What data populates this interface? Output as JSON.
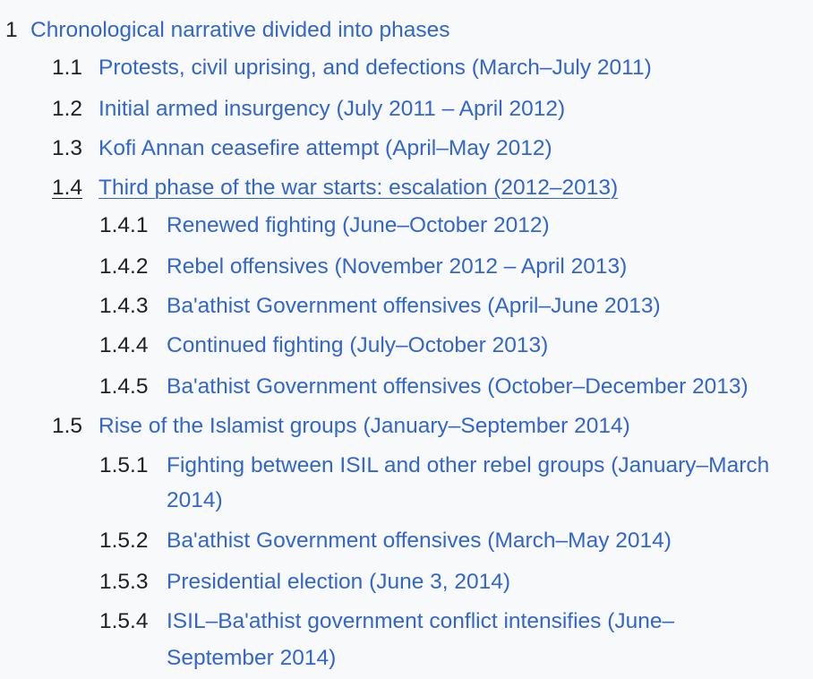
{
  "toc": {
    "entries": [
      {
        "number": "1",
        "text": "Chronological narrative divided into phases"
      },
      {
        "number": "1.1",
        "text": "Protests, civil uprising, and defections (March–July 2011)"
      },
      {
        "number": "1.2",
        "text": "Initial armed insurgency (July 2011 – April 2012)"
      },
      {
        "number": "1.3",
        "text": "Kofi Annan ceasefire attempt (April–May 2012)"
      },
      {
        "number": "1.4",
        "text": "Third phase of the war starts: escalation (2012–2013)"
      },
      {
        "number": "1.4.1",
        "text": "Renewed fighting (June–October 2012)"
      },
      {
        "number": "1.4.2",
        "text": "Rebel offensives (November 2012 – April 2013)"
      },
      {
        "number": "1.4.3",
        "text": "Ba'athist Government offensives (April–June 2013)"
      },
      {
        "number": "1.4.4",
        "text": "Continued fighting (July–October 2013)"
      },
      {
        "number": "1.4.5",
        "text": "Ba'athist Government offensives (October–December 2013)"
      },
      {
        "number": "1.5",
        "text": "Rise of the Islamist groups (January–September 2014)"
      },
      {
        "number": "1.5.1",
        "text": "Fighting between ISIL and other rebel groups (January–March 2014)"
      },
      {
        "number": "1.5.2",
        "text": "Ba'athist Government offensives (March–May 2014)"
      },
      {
        "number": "1.5.3",
        "text": "Presidential election (June 3, 2014)"
      },
      {
        "number": "1.5.4",
        "text": "ISIL–Ba'athist government conflict intensifies (June–September 2014)"
      }
    ],
    "colors": {
      "link": "#3366cc",
      "number": "#202122",
      "background": "#f8f9fa"
    }
  }
}
